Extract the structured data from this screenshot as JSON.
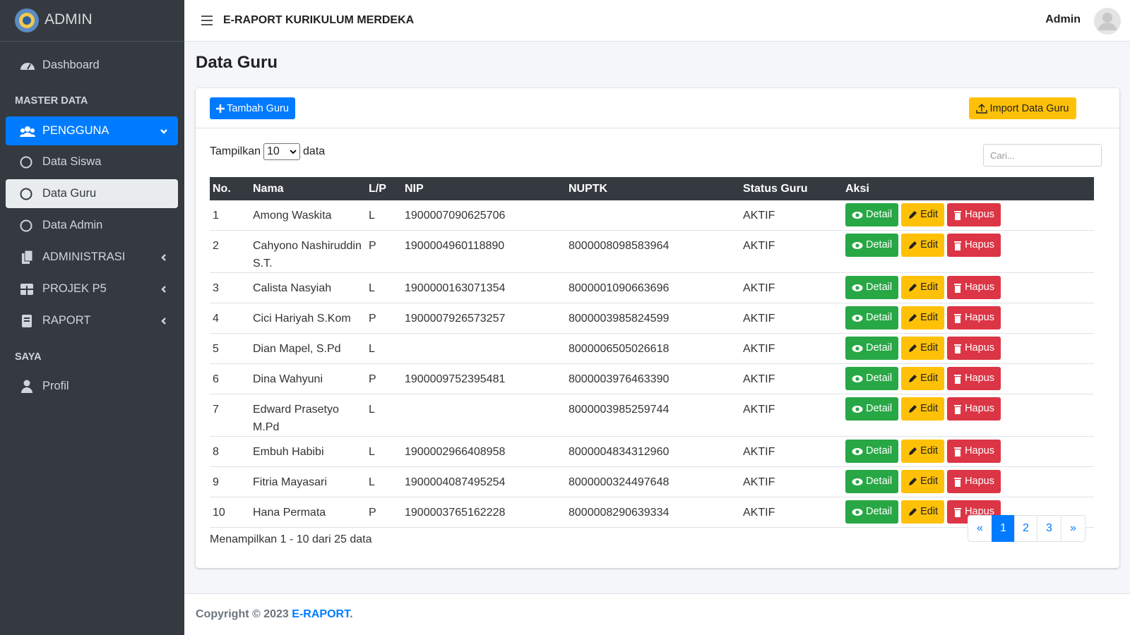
{
  "sidebar": {
    "brand": "ADMIN",
    "dashboard": "Dashboard",
    "master_header": "MASTER DATA",
    "pengguna": {
      "label": "PENGGUNA",
      "children": [
        "Data Siswa",
        "Data Guru",
        "Data Admin"
      ]
    },
    "administrasi": "ADMINISTRASI",
    "projek": "PROJEK P5",
    "raport": "RAPORT",
    "saya_header": "SAYA",
    "profil": "Profil"
  },
  "header": {
    "title": "E-RAPORT KURIKULUM MERDEKA",
    "user": "Admin"
  },
  "page_title": "Data Guru",
  "buttons": {
    "add": "Tambah Guru",
    "import": "Import Data Guru"
  },
  "length": {
    "before": "Tampilkan",
    "selected": "10",
    "after": "data"
  },
  "search_placeholder": "Cari...",
  "table": {
    "columns": [
      "No.",
      "Nama",
      "L/P",
      "NIP",
      "NUPTK",
      "Status Guru",
      "Aksi"
    ],
    "actions": [
      "Detail",
      "Edit",
      "Hapus"
    ],
    "rows": [
      [
        "1",
        "Among Waskita",
        "L",
        "1900007090625706",
        null,
        "AKTIF"
      ],
      [
        "2",
        "Cahyono Nashiruddin S.T.",
        "P",
        "1900004960118890",
        "8000008098583964",
        "AKTIF"
      ],
      [
        "3",
        "Calista Nasyiah",
        "L",
        "1900000163071354",
        "8000001090663696",
        "AKTIF"
      ],
      [
        "4",
        "Cici Hariyah S.Kom",
        "P",
        "1900007926573257",
        "8000003985824599",
        "AKTIF"
      ],
      [
        "5",
        "Dian Mapel, S.Pd",
        "L",
        null,
        "8000006505026618",
        "AKTIF"
      ],
      [
        "6",
        "Dina Wahyuni",
        "P",
        "1900009752395481",
        "8000003976463390",
        "AKTIF"
      ],
      [
        "7",
        "Edward Prasetyo M.Pd",
        "L",
        null,
        "8000003985259744",
        "AKTIF"
      ],
      [
        "8",
        "Embuh Habibi",
        "L",
        "1900002966408958",
        "8000004834312960",
        "AKTIF"
      ],
      [
        "9",
        "Fitria Mayasari",
        "L",
        "1900004087495254",
        "8000000324497648",
        "AKTIF"
      ],
      [
        "10",
        "Hana Permata",
        "P",
        "1900003765162228",
        "8000008290639334",
        "AKTIF"
      ]
    ]
  },
  "info": "Menampilkan 1 - 10 dari 25 data",
  "pagination": [
    "«",
    "1",
    "2",
    "3",
    "»"
  ],
  "footer": {
    "text": "Copyright © 2023",
    "link": "E-RAPORT",
    "end": "."
  }
}
